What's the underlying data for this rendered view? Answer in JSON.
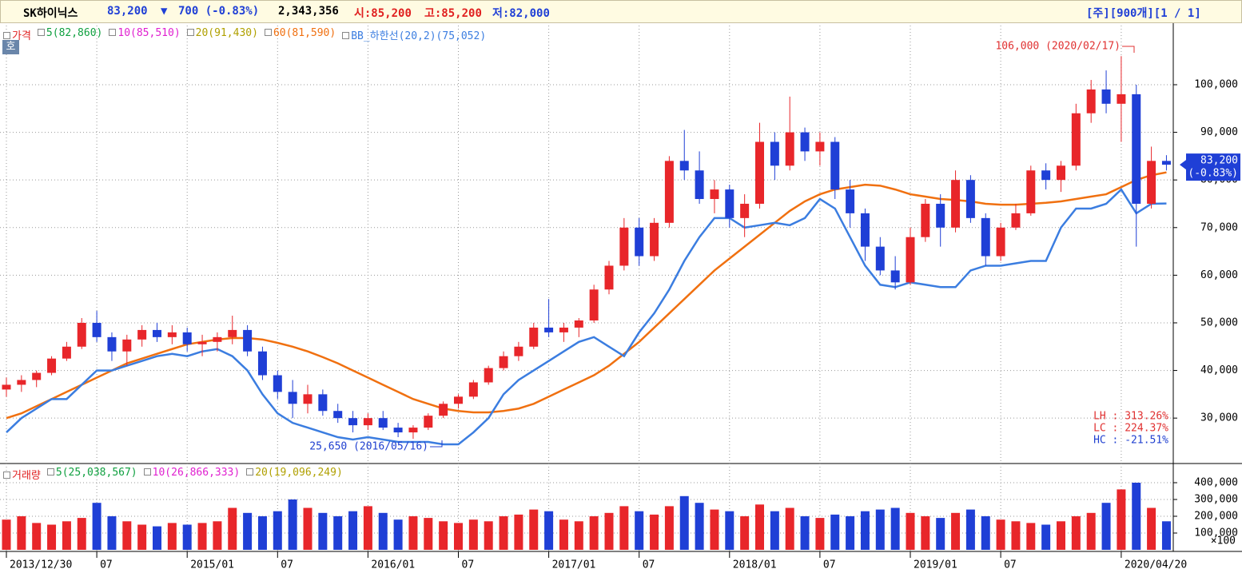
{
  "toolbar": {
    "name": "SK하이닉스",
    "price": "83,200",
    "arrow": "▼",
    "change": "700 (-0.83%)",
    "volume": "2,343,356",
    "open": "시:85,200",
    "high": "고:85,200",
    "low": "저:82,000",
    "info": "[주][900개][1 / 1]"
  },
  "chart_data": [
    {
      "type": "candlestick",
      "button": "호",
      "legend": [
        {
          "name": "가격",
          "color": "#e02020"
        },
        {
          "name": "5(82,860)",
          "color": "#10a040"
        },
        {
          "name": "10(85,510)",
          "color": "#e020d0"
        },
        {
          "name": "20(91,430)",
          "color": "#b0a000"
        }
      ],
      "up_color": "#e8262a",
      "down_color": "#1f3fd6",
      "categories": [
        "2013/12/30",
        null,
        null,
        null,
        null,
        null,
        "07",
        null,
        null,
        null,
        null,
        null,
        "2015/01",
        null,
        null,
        null,
        null,
        null,
        "07",
        null,
        null,
        null,
        null,
        null,
        "2016/01",
        null,
        null,
        null,
        null,
        null,
        "07",
        null,
        null,
        null,
        null,
        null,
        "2017/01",
        null,
        null,
        null,
        null,
        null,
        "07",
        null,
        null,
        null,
        null,
        null,
        "2018/01",
        null,
        null,
        null,
        null,
        null,
        "07",
        null,
        null,
        null,
        null,
        null,
        "2019/01",
        null,
        null,
        null,
        null,
        null,
        "07",
        null,
        null,
        null,
        null,
        null,
        null,
        null,
        "2020/04/20",
        null,
        null,
        null
      ],
      "open": [
        36000,
        37000,
        38000,
        39500,
        42500,
        45000,
        50000,
        47000,
        44000,
        46500,
        48500,
        47000,
        48000,
        45500,
        46000,
        47000,
        48500,
        44000,
        39000,
        35500,
        33000,
        35000,
        31500,
        30000,
        28500,
        30000,
        28000,
        27000,
        28000,
        30500,
        33000,
        34500,
        37500,
        40500,
        43000,
        45000,
        49000,
        48000,
        49000,
        50500,
        57000,
        62000,
        70000,
        64000,
        71000,
        84000,
        82000,
        76000,
        78000,
        72000,
        75000,
        88000,
        83000,
        90000,
        86000,
        88000,
        78000,
        73000,
        66000,
        61000,
        58500,
        68000,
        75000,
        70000,
        80000,
        72000,
        64000,
        70000,
        73000,
        82000,
        80000,
        83000,
        94000,
        99000,
        96000,
        98000,
        75000,
        84000
      ],
      "high": [
        38500,
        39000,
        40000,
        43000,
        46000,
        51000,
        52500,
        48000,
        47500,
        49500,
        50000,
        49500,
        49000,
        47500,
        48000,
        51500,
        49500,
        45000,
        40000,
        38000,
        37000,
        36000,
        33000,
        31500,
        31000,
        31500,
        29000,
        28500,
        31000,
        33500,
        35000,
        38000,
        41000,
        44000,
        46000,
        50000,
        55000,
        50000,
        51000,
        58000,
        63000,
        72000,
        72000,
        72000,
        85000,
        90500,
        86000,
        80000,
        79000,
        77000,
        92000,
        90000,
        97500,
        91000,
        90000,
        89000,
        80000,
        74000,
        68000,
        64000,
        70000,
        76000,
        77000,
        82000,
        81000,
        73000,
        71000,
        75000,
        83000,
        83500,
        84000,
        96000,
        101000,
        103000,
        106000,
        100000,
        87000,
        85200
      ],
      "low": [
        34500,
        35500,
        36500,
        39000,
        42000,
        44500,
        46000,
        42000,
        41000,
        45000,
        46000,
        45500,
        44000,
        43000,
        44000,
        45500,
        43000,
        38000,
        34000,
        30000,
        31000,
        30500,
        29000,
        27000,
        27500,
        27500,
        26000,
        25650,
        27500,
        30000,
        32000,
        34000,
        37000,
        40000,
        42000,
        44500,
        47000,
        46000,
        47000,
        50000,
        56000,
        61000,
        62000,
        63000,
        70000,
        80000,
        75000,
        73000,
        70000,
        68000,
        74000,
        80000,
        82000,
        84000,
        83000,
        76000,
        70000,
        63000,
        60000,
        57000,
        58000,
        67000,
        66000,
        69000,
        71000,
        62000,
        63000,
        69500,
        72500,
        78000,
        77500,
        82000,
        92000,
        94000,
        88000,
        66000,
        74000,
        82000
      ],
      "close": [
        37000,
        38000,
        39500,
        42500,
        45000,
        50000,
        47000,
        44000,
        46500,
        48500,
        47000,
        48000,
        45500,
        46000,
        47000,
        48500,
        44000,
        39000,
        35500,
        33000,
        35000,
        31500,
        30000,
        28500,
        30000,
        28000,
        27000,
        28000,
        30500,
        33000,
        34500,
        37500,
        40500,
        43000,
        45000,
        49000,
        48000,
        49000,
        50500,
        57000,
        62000,
        70000,
        64000,
        71000,
        84000,
        82000,
        76000,
        78000,
        72000,
        75000,
        88000,
        83000,
        90000,
        86000,
        88000,
        78000,
        73000,
        66000,
        61000,
        58500,
        68000,
        75000,
        70000,
        80000,
        72000,
        64000,
        70000,
        73000,
        82000,
        80000,
        83000,
        94000,
        99000,
        96000,
        98000,
        75000,
        84000,
        83200
      ],
      "series": [
        {
          "name": "60(81,590)",
          "color": "#f07010",
          "values": [
            30000,
            31000,
            32500,
            34000,
            35500,
            37000,
            38500,
            40000,
            41500,
            42500,
            43500,
            44500,
            45500,
            46000,
            46500,
            46800,
            46800,
            46500,
            45800,
            45000,
            44000,
            42800,
            41500,
            40000,
            38500,
            37000,
            35500,
            34000,
            33000,
            32000,
            31500,
            31200,
            31200,
            31500,
            32000,
            33000,
            34500,
            36000,
            37500,
            39000,
            41000,
            43500,
            46000,
            49000,
            52000,
            55000,
            58000,
            61000,
            63500,
            66000,
            68500,
            71000,
            73500,
            75500,
            77000,
            78000,
            78500,
            79000,
            78800,
            78000,
            77000,
            76500,
            76000,
            75800,
            75500,
            75000,
            74800,
            74800,
            75000,
            75200,
            75500,
            76000,
            76500,
            77000,
            78500,
            80000,
            81000,
            81590
          ]
        },
        {
          "name": "BB_하한선(20,2)(75,052)",
          "color": "#3b7de0",
          "values": [
            27000,
            30000,
            32000,
            34000,
            34000,
            37000,
            40000,
            40000,
            41000,
            42000,
            43000,
            43500,
            43000,
            44000,
            44500,
            43000,
            40000,
            35000,
            31000,
            29000,
            28000,
            27000,
            26000,
            25500,
            26000,
            25500,
            25000,
            25000,
            25000,
            24500,
            24500,
            27000,
            30000,
            35000,
            38000,
            40000,
            42000,
            44000,
            46000,
            47000,
            45000,
            43000,
            48000,
            52000,
            57000,
            63000,
            68000,
            72000,
            72000,
            70000,
            70500,
            71000,
            70500,
            72000,
            76000,
            74000,
            68000,
            62000,
            58000,
            57500,
            58500,
            58000,
            57500,
            57500,
            61000,
            62000,
            62000,
            62500,
            63000,
            63000,
            70000,
            74000,
            74000,
            75000,
            78000,
            73000,
            75000,
            75052
          ]
        }
      ],
      "annotations": [
        {
          "text": "106,000 (2020/02/17)",
          "color": "#e03030"
        },
        {
          "text": "25,650 (2016/05/16)",
          "color": "#2040d0"
        }
      ],
      "price_label": [
        "83,200",
        "(-0.83%)"
      ],
      "stats": [
        {
          "text": "LH : 313.26%",
          "color": "#e03030"
        },
        {
          "text": "LC : 224.37%",
          "color": "#e03030"
        },
        {
          "text": "HC : -21.51%",
          "color": "#2040d0"
        }
      ],
      "ylim": [
        20800,
        112750
      ],
      "yticks": [
        {
          "value": 30000,
          "label": "30,000"
        },
        {
          "value": 40000,
          "label": "40,000"
        },
        {
          "value": 50000,
          "label": "50,000"
        },
        {
          "value": 60000,
          "label": "60,000"
        },
        {
          "value": 70000,
          "label": "70,000"
        },
        {
          "value": 80000,
          "label": "80,000"
        },
        {
          "value": 90000,
          "label": "90,000"
        },
        {
          "value": 100000,
          "label": "100,000"
        }
      ],
      "grid": true
    },
    {
      "type": "bar",
      "legend": [
        {
          "name": "거래량",
          "color": "#e02020"
        },
        {
          "name": "5(25,038,567)",
          "color": "#10a040"
        },
        {
          "name": "10(26,866,333)",
          "color": "#e020d0"
        },
        {
          "name": "20(19,096,249)",
          "color": "#b0a000"
        }
      ],
      "unit": "×100",
      "values": [
        180000,
        200000,
        160000,
        150000,
        170000,
        190000,
        280000,
        200000,
        170000,
        150000,
        140000,
        160000,
        150000,
        160000,
        170000,
        250000,
        220000,
        200000,
        230000,
        300000,
        250000,
        220000,
        200000,
        230000,
        260000,
        220000,
        180000,
        200000,
        190000,
        170000,
        160000,
        180000,
        170000,
        200000,
        210000,
        240000,
        230000,
        180000,
        170000,
        200000,
        220000,
        260000,
        230000,
        210000,
        260000,
        320000,
        280000,
        240000,
        230000,
        200000,
        270000,
        230000,
        250000,
        200000,
        190000,
        210000,
        200000,
        230000,
        240000,
        250000,
        220000,
        200000,
        190000,
        220000,
        240000,
        200000,
        180000,
        170000,
        160000,
        150000,
        170000,
        200000,
        220000,
        280000,
        360000,
        400000,
        250000,
        170000
      ],
      "ylim": [
        0,
        500000
      ],
      "yticks": [
        {
          "value": 100000,
          "label": "100,000"
        },
        {
          "value": 200000,
          "label": "200,000"
        },
        {
          "value": 300000,
          "label": "300,000"
        },
        {
          "value": 400000,
          "label": "400,000"
        }
      ],
      "grid": true
    }
  ]
}
